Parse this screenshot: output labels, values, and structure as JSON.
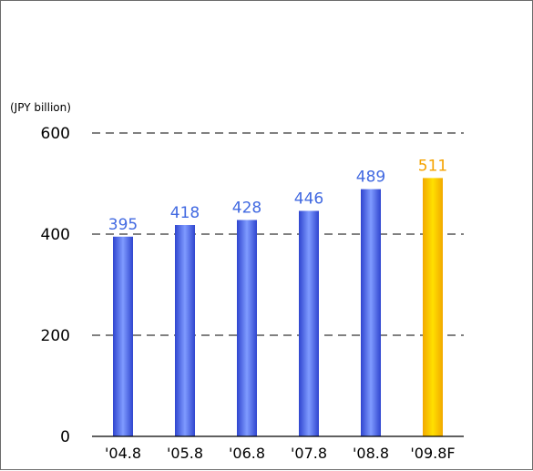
{
  "chart_data": {
    "type": "bar",
    "unit_label": "(JPY billion)",
    "categories": [
      "'04.8",
      "'05.8",
      "'06.8",
      "'07.8",
      "'08.8",
      "'09.8F"
    ],
    "values": [
      395,
      418,
      428,
      446,
      489,
      511
    ],
    "value_labels": [
      "395",
      "418",
      "428",
      "446",
      "489",
      "511"
    ],
    "forecast_index": 5,
    "ylim": [
      0,
      600
    ],
    "yticks": [
      0,
      200,
      400,
      600
    ],
    "ytick_labels": [
      "0",
      "200",
      "400",
      "600"
    ],
    "grid": true,
    "colors": {
      "actual": "#3f5fe6",
      "forecast": "#ffc000",
      "actual_label": "#4169e1",
      "forecast_label": "#f5a300"
    }
  }
}
